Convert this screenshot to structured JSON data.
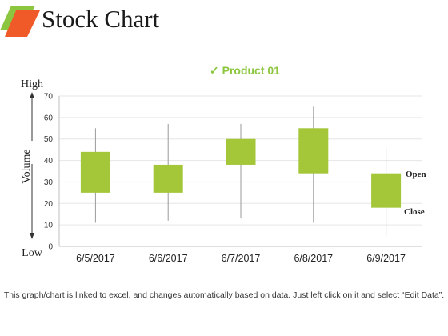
{
  "header": {
    "title": "Stock Chart"
  },
  "colors": {
    "accent_orange": "#f05a28",
    "accent_green": "#8cc63f",
    "candle": "#a4c639",
    "wick": "#9a9a9a",
    "grid": "#e6e6e6",
    "text": "#222222"
  },
  "chart_data": {
    "type": "candlestick",
    "title": "✓ Product 01",
    "ylabel": "Volume",
    "y_high_label": "High",
    "y_low_label": "Low",
    "ylim": [
      0,
      70
    ],
    "yticks": [
      0,
      10,
      20,
      30,
      40,
      50,
      60,
      70
    ],
    "grid": true,
    "categories": [
      "6/5/2017",
      "6/6/2017",
      "6/7/2017",
      "6/8/2017",
      "6/9/2017"
    ],
    "high": [
      55,
      57,
      57,
      65,
      46
    ],
    "low": [
      11,
      12,
      13,
      11,
      5
    ],
    "open": [
      25,
      25,
      38,
      34,
      34
    ],
    "close": [
      44,
      38,
      50,
      55,
      18
    ],
    "annotations": {
      "open": "Open",
      "close": "Close"
    }
  },
  "footer": {
    "note": "This graph/chart is linked to excel, and changes automatically based on data. Just left click on it and select “Edit Data”."
  }
}
